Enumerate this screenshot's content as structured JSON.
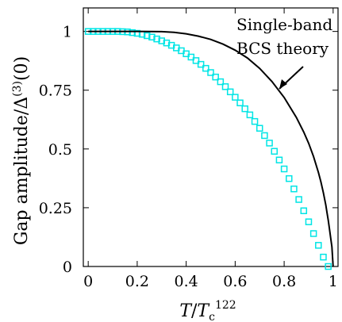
{
  "chart_data": {
    "type": "scatter",
    "title": "",
    "xlabel": "T/T_c^122",
    "ylabel": "Gap amplitude/Δ^(3)(0)",
    "xlim": [
      -0.02,
      1.02
    ],
    "ylim": [
      0,
      1.1
    ],
    "x_ticks": [
      "0",
      "0.2",
      "0.4",
      "0.6",
      "0.8",
      "1"
    ],
    "x_tick_values": [
      0,
      0.2,
      0.4,
      0.6,
      0.8,
      1.0
    ],
    "y_ticks": [
      "0",
      "0.25",
      "0.5",
      "0.75",
      "1"
    ],
    "y_tick_values": [
      0,
      0.25,
      0.5,
      0.75,
      1.0
    ],
    "grid": false,
    "series": [
      {
        "name": "",
        "kind": "markers",
        "marker": "square",
        "color": "#00e5e5",
        "x": [
          0.0,
          0.02,
          0.04,
          0.06,
          0.08,
          0.1,
          0.12,
          0.14,
          0.16,
          0.18,
          0.2,
          0.22,
          0.24,
          0.26,
          0.28,
          0.3,
          0.32,
          0.34,
          0.36,
          0.38,
          0.4,
          0.42,
          0.44,
          0.46,
          0.48,
          0.5,
          0.52,
          0.54,
          0.56,
          0.58,
          0.6,
          0.62,
          0.64,
          0.66,
          0.68,
          0.7,
          0.72,
          0.74,
          0.76,
          0.78,
          0.8,
          0.82,
          0.84,
          0.86,
          0.88,
          0.9,
          0.92,
          0.94,
          0.96,
          0.98
        ],
        "y": [
          1.0,
          1.0,
          1.0,
          1.0,
          1.0,
          1.0,
          1.0,
          0.999,
          0.998,
          0.995,
          0.992,
          0.988,
          0.982,
          0.976,
          0.968,
          0.96,
          0.951,
          0.941,
          0.93,
          0.918,
          0.905,
          0.891,
          0.876,
          0.86,
          0.843,
          0.825,
          0.806,
          0.786,
          0.765,
          0.743,
          0.72,
          0.696,
          0.671,
          0.645,
          0.617,
          0.588,
          0.557,
          0.525,
          0.49,
          0.453,
          0.415,
          0.374,
          0.33,
          0.285,
          0.237,
          0.19,
          0.14,
          0.09,
          0.04,
          0.0
        ]
      },
      {
        "name": "Single-band BCS theory",
        "kind": "line",
        "color": "#000000",
        "x": [
          0.0,
          0.1,
          0.2,
          0.3,
          0.35,
          0.4,
          0.45,
          0.5,
          0.55,
          0.6,
          0.65,
          0.7,
          0.75,
          0.8,
          0.85,
          0.88,
          0.9,
          0.92,
          0.94,
          0.95,
          0.96,
          0.97,
          0.975,
          0.98,
          0.985,
          0.99,
          0.995,
          1.0
        ],
        "y": [
          1.0,
          1.0,
          1.0,
          0.999,
          0.996,
          0.99,
          0.98,
          0.966,
          0.946,
          0.92,
          0.887,
          0.843,
          0.787,
          0.719,
          0.634,
          0.572,
          0.524,
          0.468,
          0.4,
          0.36,
          0.314,
          0.261,
          0.229,
          0.196,
          0.16,
          0.122,
          0.083,
          0.0
        ]
      }
    ],
    "annotation": {
      "lines": [
        "Single-band",
        "BCS theory"
      ],
      "arrow_to": [
        0.79,
        0.745
      ]
    }
  }
}
